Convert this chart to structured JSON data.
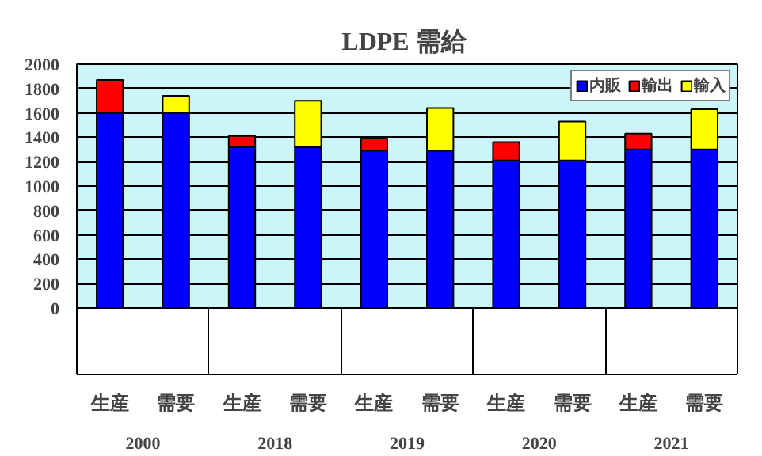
{
  "chart_data": {
    "type": "bar",
    "title": "LDPE  需給",
    "stacked": true,
    "categories": [
      "生産",
      "需要",
      "生産",
      "需要",
      "生産",
      "需要",
      "生産",
      "需要",
      "生産",
      "需要"
    ],
    "annotations": [
      "2000",
      "2018",
      "2019",
      "2020",
      "2021"
    ],
    "series": [
      {
        "name": "内販",
        "color": "#0000ff",
        "values": [
          1600,
          1600,
          1320,
          1320,
          1290,
          1290,
          1210,
          1210,
          1300,
          1300
        ]
      },
      {
        "name": "輸出",
        "color": "#ff0000",
        "values": [
          270,
          null,
          90,
          null,
          100,
          null,
          150,
          null,
          130,
          null
        ]
      },
      {
        "name": "輸入",
        "color": "#ffff00",
        "values": [
          null,
          140,
          null,
          380,
          null,
          350,
          null,
          320,
          null,
          330
        ]
      }
    ],
    "ylim": [
      0,
      2000
    ],
    "yticks": [
      0,
      200,
      400,
      600,
      800,
      1000,
      1200,
      1400,
      1600,
      1800,
      2000
    ],
    "grid": "y",
    "legend": "top right"
  }
}
